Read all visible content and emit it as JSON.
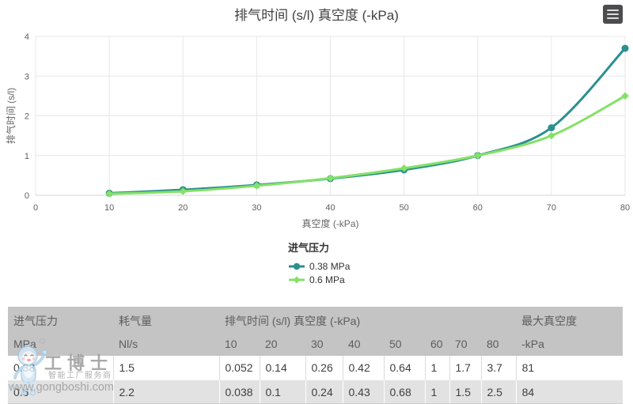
{
  "chart_data": {
    "type": "line",
    "title": "排气时间 (s/l) 真空度 (-kPa)",
    "xlabel": "真空度 (-kPa)",
    "ylabel": "排气时间 (s/l)",
    "legend_title": "进气压力",
    "legend_position": "bottom",
    "grid": true,
    "x": [
      10,
      20,
      30,
      40,
      50,
      60,
      70,
      80
    ],
    "xticks": [
      0,
      10,
      20,
      30,
      40,
      50,
      60,
      70,
      80
    ],
    "yticks": [
      0,
      1,
      2,
      3,
      4
    ],
    "xlim": [
      0,
      80
    ],
    "ylim": [
      0,
      4
    ],
    "series": [
      {
        "name": "0.38 MPa",
        "color": "#2b908f",
        "marker": "circle",
        "values": [
          0.052,
          0.14,
          0.26,
          0.42,
          0.64,
          1,
          1.7,
          3.7
        ]
      },
      {
        "name": "0.6 MPa",
        "color": "#84e168",
        "marker": "diamond",
        "values": [
          0.038,
          0.1,
          0.24,
          0.43,
          0.68,
          1,
          1.5,
          2.5
        ]
      }
    ]
  },
  "icons": {
    "context_menu": "hamburger-icon"
  },
  "table": {
    "group_headers": [
      {
        "label": "进气压力"
      },
      {
        "label": "耗气量"
      },
      {
        "label": "排气时间 (s/l) 真空度 (-kPa)"
      },
      {
        "label": "最大真空度"
      }
    ],
    "unit_row": [
      "MPa",
      "Nl/s",
      "10",
      "20",
      "30",
      "40",
      "50",
      "60",
      "70",
      "80",
      "-kPa"
    ],
    "rows": [
      [
        "0.38",
        "1.5",
        "0.052",
        "0.14",
        "0.26",
        "0.42",
        "0.64",
        "1",
        "1.7",
        "3.7",
        "81"
      ],
      [
        "0.6",
        "2.2",
        "0.038",
        "0.1",
        "0.24",
        "0.43",
        "0.68",
        "1",
        "1.5",
        "2.5",
        "84"
      ]
    ]
  },
  "watermark": {
    "logo": "工博士",
    "subtitle": "智能工厂服务商",
    "url": "www.gongboshi.com"
  },
  "colors": {
    "series_teal": "#2b908f",
    "series_green": "#84e168",
    "table_header_bg": "#c4c4c4",
    "table_alt_row_bg": "#e2e2e2"
  }
}
